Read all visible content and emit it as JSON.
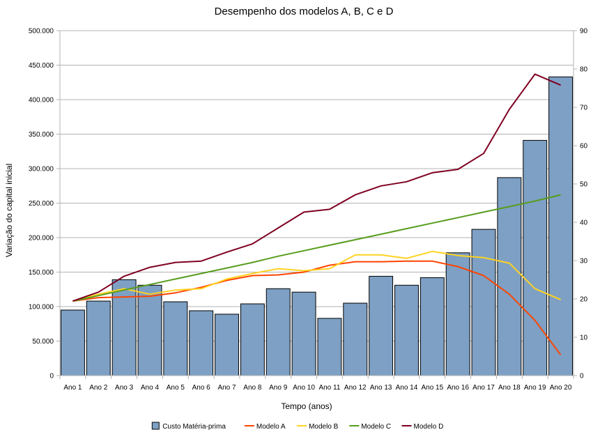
{
  "chart_data": {
    "type": "bar",
    "title": "Desempenho dos modelos A, B, C e D",
    "xlabel": "Tempo (anos)",
    "ylabel": "Variação do capital inicial",
    "categories": [
      "Ano 1",
      "Ano 2",
      "Ano 3",
      "Ano 4",
      "Ano 5",
      "Ano 6",
      "Ano 7",
      "Ano 8",
      "Ano 9",
      "Ano 10",
      "Ano 11",
      "Ano 12",
      "Ano 13",
      "Ano 14",
      "Ano 15",
      "Ano 16",
      "Ano 17",
      "Ano 18",
      "Ano 19",
      "Ano 20"
    ],
    "ylim": [
      0,
      500000
    ],
    "y_ticks": [
      "0",
      "50.000",
      "100.000",
      "150.000",
      "200.000",
      "250.000",
      "300.000",
      "350.000",
      "400.000",
      "450.000",
      "500.000"
    ],
    "y2lim": [
      0,
      90
    ],
    "y2_ticks": [
      "0",
      "10",
      "20",
      "30",
      "40",
      "50",
      "60",
      "70",
      "80",
      "90"
    ],
    "grid": true,
    "legend_position": "bottom",
    "series": [
      {
        "name": "Custo Matéria-prima",
        "type": "bar",
        "axis": "left",
        "color": "#7da0c4",
        "values": [
          95000,
          108000,
          139000,
          131000,
          107000,
          94000,
          89000,
          104000,
          126000,
          121000,
          83000,
          105000,
          144000,
          131000,
          142000,
          178000,
          212000,
          287000,
          341000,
          433000
        ]
      },
      {
        "name": "Modelo A",
        "type": "line",
        "axis": "left",
        "color": "#ff4400",
        "values": [
          108000,
          113000,
          114000,
          115000,
          120000,
          128000,
          138000,
          145000,
          146000,
          150000,
          160000,
          165000,
          165000,
          166000,
          166000,
          158000,
          145000,
          118000,
          80000,
          30000
        ]
      },
      {
        "name": "Modelo B",
        "type": "line",
        "axis": "left",
        "color": "#ffd320",
        "values": [
          108000,
          118000,
          126000,
          118000,
          124000,
          126000,
          140000,
          148000,
          155000,
          152000,
          155000,
          175000,
          175000,
          170000,
          180000,
          174000,
          171000,
          163000,
          126000,
          110000
        ]
      },
      {
        "name": "Modelo C",
        "type": "line",
        "axis": "left",
        "color": "#579d1c",
        "values": [
          108000,
          116000,
          124000,
          132000,
          140000,
          148000,
          156000,
          164000,
          173000,
          181000,
          189000,
          197000,
          205000,
          213000,
          221000,
          229000,
          237000,
          245000,
          253000,
          262000
        ]
      },
      {
        "name": "Modelo D",
        "type": "line",
        "axis": "left",
        "color": "#7e0021",
        "values": [
          108000,
          121000,
          144000,
          157000,
          164000,
          166000,
          179000,
          191000,
          214000,
          237000,
          241000,
          262000,
          275000,
          281000,
          294000,
          299000,
          322000,
          386000,
          437000,
          421000
        ]
      }
    ]
  }
}
